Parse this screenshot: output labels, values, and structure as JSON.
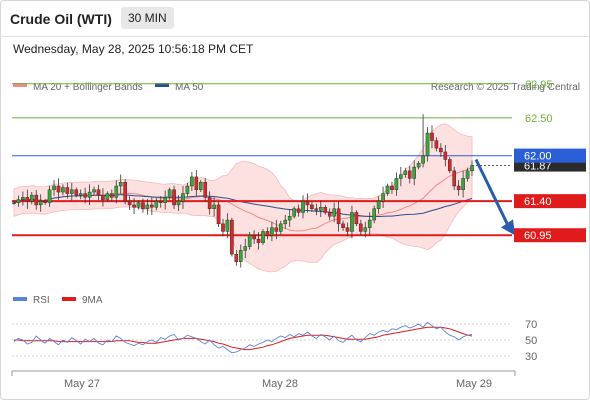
{
  "header": {
    "title": "Crude Oil (WTI)",
    "interval": "30 MIN"
  },
  "datetime": "Wednesday, May 28, 2025 10:56:18 PM CET",
  "legend": {
    "ma20_bb": {
      "label": "MA 20 + Bollinger Bands",
      "color": "#f08a8a"
    },
    "ma50": {
      "label": "MA 50",
      "color": "#2a4d8f"
    }
  },
  "credit": "Research © 2025 Trading Central",
  "levels": [
    {
      "value": 62.95,
      "label": "62.95",
      "color": "#6fb23a",
      "style": "thin"
    },
    {
      "value": 62.5,
      "label": "62.50",
      "color": "#6fb23a",
      "style": "thin"
    },
    {
      "value": 62.0,
      "label": "62.00",
      "color": "#2b5fd8",
      "style": "pivot"
    },
    {
      "value": 61.4,
      "label": "61.40",
      "color": "#e11b1b",
      "style": "thick"
    },
    {
      "value": 60.95,
      "label": "60.95",
      "color": "#e11b1b",
      "style": "thick"
    }
  ],
  "last_price": {
    "value": 61.87,
    "label": "61.87"
  },
  "rsi_legend": {
    "rsi": {
      "label": "RSI",
      "color": "#5b84d6"
    },
    "ma9": {
      "label": "9MA",
      "color": "#e11b1b"
    }
  },
  "rsi_axis": [
    "70",
    "50",
    "30"
  ],
  "x_axis": [
    "May 27",
    "May 28",
    "May 29"
  ],
  "chart_data": [
    {
      "type": "candlestick",
      "title": "Crude Oil (WTI) 30 MIN",
      "ylim": [
        60.2,
        63.0
      ],
      "x_labels": [
        "May 27",
        "May 28",
        "May 29"
      ],
      "candles_note": "approximate closes read from chart",
      "close": [
        61.38,
        61.42,
        61.45,
        61.4,
        61.48,
        61.35,
        61.4,
        61.38,
        61.55,
        61.6,
        61.52,
        61.58,
        61.5,
        61.55,
        61.48,
        61.5,
        61.45,
        61.52,
        61.55,
        61.48,
        61.42,
        61.5,
        61.45,
        61.6,
        61.65,
        61.4,
        61.35,
        61.32,
        61.38,
        61.3,
        61.35,
        61.32,
        61.4,
        61.38,
        61.45,
        61.55,
        61.35,
        61.4,
        61.5,
        61.6,
        61.72,
        61.55,
        61.65,
        61.45,
        61.3,
        61.35,
        61.1,
        61.0,
        61.15,
        60.7,
        60.6,
        60.75,
        60.8,
        60.95,
        60.9,
        60.85,
        61.0,
        60.95,
        61.05,
        61.0,
        61.1,
        61.15,
        61.2,
        61.3,
        61.25,
        61.4,
        61.35,
        61.3,
        61.28,
        61.32,
        61.25,
        61.2,
        61.3,
        61.1,
        61.05,
        61.0,
        61.25,
        61.1,
        61.0,
        61.05,
        61.15,
        61.3,
        61.4,
        61.5,
        61.6,
        61.55,
        61.7,
        61.75,
        61.8,
        61.7,
        61.85,
        61.9,
        62.0,
        62.3,
        62.2,
        62.1,
        62.05,
        61.95,
        61.8,
        61.6,
        61.55,
        61.7,
        61.8,
        61.87
      ],
      "series": [
        {
          "name": "MA 20",
          "values_note": "smoothed mid band"
        },
        {
          "name": "MA 50",
          "values_note": "slow moving average"
        }
      ],
      "levels": [
        62.95,
        62.5,
        62.0,
        61.4,
        60.95
      ]
    },
    {
      "type": "line",
      "title": "RSI",
      "ylim": [
        20,
        80
      ],
      "y_ticks": [
        70,
        50,
        30
      ],
      "series": [
        {
          "name": "RSI",
          "values": [
            48,
            52,
            50,
            45,
            47,
            55,
            50,
            46,
            52,
            48,
            44,
            50,
            47,
            53,
            49,
            45,
            51,
            48,
            52,
            46,
            44,
            50,
            48,
            55,
            52,
            47,
            45,
            43,
            46,
            44,
            48,
            50,
            47,
            53,
            51,
            55,
            57,
            50,
            52,
            56,
            54,
            52,
            48,
            45,
            50,
            44,
            40,
            42,
            38,
            34,
            35,
            38,
            40,
            44,
            42,
            45,
            47,
            50,
            48,
            52,
            55,
            53,
            57,
            54,
            58,
            56,
            60,
            55,
            52,
            57,
            54,
            50,
            55,
            49,
            47,
            52,
            56,
            50,
            48,
            53,
            58,
            56,
            60,
            62,
            60,
            64,
            63,
            66,
            68,
            65,
            67,
            70,
            66,
            72,
            68,
            64,
            66,
            60,
            56,
            54,
            50,
            54,
            56,
            57
          ]
        },
        {
          "name": "9MA",
          "values": [
            50,
            50,
            49,
            49,
            49,
            49,
            49,
            49,
            49,
            49,
            48,
            48,
            48,
            48,
            48,
            48,
            48,
            48,
            48,
            48,
            48,
            48,
            48,
            49,
            49,
            49,
            49,
            48,
            47,
            47,
            46,
            46,
            46,
            47,
            48,
            49,
            50,
            51,
            52,
            52,
            52,
            52,
            51,
            50,
            49,
            48,
            46,
            45,
            43,
            41,
            40,
            39,
            38,
            38,
            39,
            40,
            41,
            43,
            44,
            46,
            48,
            50,
            52,
            53,
            54,
            55,
            56,
            56,
            56,
            56,
            56,
            55,
            54,
            53,
            52,
            51,
            51,
            51,
            51,
            51,
            52,
            53,
            54,
            56,
            57,
            58,
            59,
            60,
            61,
            62,
            63,
            64,
            65,
            66,
            66,
            66,
            66,
            65,
            64,
            62,
            60,
            58,
            56,
            55
          ]
        }
      ]
    }
  ]
}
